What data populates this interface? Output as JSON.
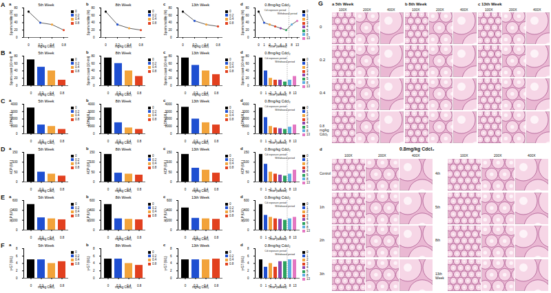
{
  "chart_data": [
    {
      "type": "line",
      "row_label": "A",
      "panel_label": "a",
      "title": "5th Week",
      "x_label": "mg/kg Cdcl₂",
      "y_label": "Sperm motility (%)",
      "categories": [
        "0",
        "0.2",
        "0.4",
        "0.8"
      ],
      "values": [
        70,
        40,
        35,
        20
      ],
      "colors": [
        "#000000",
        "#1f4fd1",
        "#f2a33a",
        "#e2401f"
      ],
      "marker": "circle",
      "ylim": [
        0,
        80
      ],
      "yticks": [
        0,
        20,
        40,
        60,
        80
      ],
      "legend": "right"
    },
    {
      "type": "line",
      "panel_label": "b",
      "title": "8th Week",
      "x_label": "mg/kg Cdcl₂",
      "y_label": "Sperm motility (%)",
      "categories": [
        "0",
        "0.2",
        "0.4",
        "0.8"
      ],
      "values": [
        70,
        35,
        25,
        20
      ],
      "colors": [
        "#000000",
        "#1f4fd1",
        "#f2a33a",
        "#e2401f"
      ],
      "marker": "circle",
      "ylim": [
        0,
        80
      ],
      "yticks": [
        0,
        20,
        40,
        60,
        80
      ],
      "legend": "right"
    },
    {
      "type": "line",
      "panel_label": "c",
      "title": "13th Week",
      "x_label": "mg/kg Cdcl₂",
      "y_label": "Sperm motility (%)",
      "categories": [
        "0",
        "0.2",
        "0.4",
        "0.8"
      ],
      "values": [
        70,
        45,
        35,
        30
      ],
      "colors": [
        "#000000",
        "#1f4fd1",
        "#f2a33a",
        "#e2401f"
      ],
      "marker": "circle",
      "ylim": [
        0,
        80
      ],
      "yticks": [
        0,
        20,
        40,
        60,
        80
      ],
      "legend": "right"
    },
    {
      "type": "line",
      "panel_label": "d",
      "title": "0.8mg/kg Cdcl₂",
      "x_label": "Time (weeks)",
      "y_label": "Sperm motility (%)",
      "categories": [
        "0",
        "1",
        "2",
        "3",
        "4",
        "5",
        "8",
        "13"
      ],
      "values": [
        70,
        40,
        35,
        30,
        25,
        20,
        35,
        45
      ],
      "colors": [
        "#000000",
        "#1f4fd1",
        "#f2a33a",
        "#e2401f",
        "#8e44ad",
        "#2ca25f",
        "#5dade2",
        "#e377c2"
      ],
      "marker": "circle",
      "ylim": [
        0,
        80
      ],
      "yticks": [
        0,
        20,
        40,
        60,
        80
      ],
      "legend": "right",
      "annotations": [
        "Cd exposure period",
        "Withdrawal period"
      ]
    },
    {
      "type": "bar",
      "row_label": "B",
      "panel_label": "a",
      "title": "5th Week",
      "x_label": "mg/kg Cdcl₂",
      "y_label": "Sperm count (10⁶/ml)",
      "categories": [
        "0",
        "0.2",
        "0.4",
        "0.8"
      ],
      "values": [
        70,
        50,
        40,
        15
      ],
      "colors": [
        "#000000",
        "#1f4fd1",
        "#f2a33a",
        "#e2401f"
      ],
      "ylim": [
        0,
        80
      ],
      "yticks": [
        0,
        20,
        40,
        60,
        80
      ],
      "legend": "right"
    },
    {
      "type": "bar",
      "panel_label": "b",
      "title": "8th Week",
      "x_label": "mg/kg Cdcl₂",
      "y_label": "Sperm count (10⁶/ml)",
      "categories": [
        "0",
        "0.2",
        "0.4",
        "0.8"
      ],
      "values": [
        75,
        60,
        40,
        25
      ],
      "colors": [
        "#000000",
        "#1f4fd1",
        "#f2a33a",
        "#e2401f"
      ],
      "ylim": [
        0,
        80
      ],
      "yticks": [
        0,
        20,
        40,
        60,
        80
      ],
      "legend": "right"
    },
    {
      "type": "bar",
      "panel_label": "c",
      "title": "13th Week",
      "x_label": "mg/kg Cdcl₂",
      "y_label": "Sperm count (10⁶/ml)",
      "categories": [
        "0",
        "0.2",
        "0.4",
        "0.8"
      ],
      "values": [
        75,
        55,
        40,
        30
      ],
      "colors": [
        "#000000",
        "#1f4fd1",
        "#f2a33a",
        "#e2401f"
      ],
      "ylim": [
        0,
        80
      ],
      "yticks": [
        0,
        20,
        40,
        60,
        80
      ],
      "legend": "right"
    },
    {
      "type": "bar",
      "panel_label": "d",
      "title": "0.8mg/kg Cdcl₂",
      "x_label": "Time (weeks)",
      "y_label": "Sperm count (10⁶/ml)",
      "categories": [
        "0",
        "1",
        "2",
        "3",
        "4",
        "5",
        "8",
        "13"
      ],
      "values": [
        75,
        40,
        20,
        15,
        15,
        10,
        15,
        25
      ],
      "colors": [
        "#000000",
        "#1f4fd1",
        "#f2a33a",
        "#e2401f",
        "#8e44ad",
        "#2ca25f",
        "#5dade2",
        "#e377c2"
      ],
      "ylim": [
        0,
        80
      ],
      "yticks": [
        0,
        20,
        40,
        60,
        80
      ],
      "legend": "right",
      "annotations": [
        "Cd exposure period",
        "Withdrawal period"
      ]
    },
    {
      "type": "bar",
      "row_label": "C",
      "panel_label": "a",
      "title": "5th Week",
      "x_label": "mg/kg Cdcl₂",
      "y_label": "LDH (U/L)",
      "categories": [
        "0",
        "0.2",
        "0.4",
        "0.8"
      ],
      "values": [
        3500,
        1200,
        1000,
        600
      ],
      "colors": [
        "#000000",
        "#1f4fd1",
        "#f2a33a",
        "#e2401f"
      ],
      "ylim": [
        0,
        4000
      ],
      "yticks": [
        0,
        1000,
        2000,
        3000,
        4000
      ],
      "legend": "right"
    },
    {
      "type": "bar",
      "panel_label": "b",
      "title": "8th Week",
      "x_label": "mg/kg Cdcl₂",
      "y_label": "LDH (U/L)",
      "categories": [
        "0",
        "0.2",
        "0.4",
        "0.8"
      ],
      "values": [
        3500,
        1500,
        800,
        600
      ],
      "colors": [
        "#000000",
        "#1f4fd1",
        "#f2a33a",
        "#e2401f"
      ],
      "ylim": [
        0,
        4000
      ],
      "yticks": [
        0,
        1000,
        2000,
        3000,
        4000
      ],
      "legend": "right"
    },
    {
      "type": "bar",
      "panel_label": "c",
      "title": "13th Week",
      "x_label": "mg/kg Cdcl₂",
      "y_label": "LDH (U/L)",
      "categories": [
        "0",
        "0.2",
        "0.4",
        "0.8"
      ],
      "values": [
        3600,
        2000,
        1500,
        1200
      ],
      "colors": [
        "#000000",
        "#1f4fd1",
        "#f2a33a",
        "#e2401f"
      ],
      "ylim": [
        0,
        4000
      ],
      "yticks": [
        0,
        1000,
        2000,
        3000,
        4000
      ],
      "legend": "right"
    },
    {
      "type": "bar",
      "panel_label": "d",
      "title": "0.8mg/kg Cdcl₂",
      "x_label": "Time (weeks)",
      "y_label": "LDH (U/L)",
      "categories": [
        "0",
        "1",
        "2",
        "3",
        "4",
        "5",
        "8",
        "13"
      ],
      "values": [
        3500,
        2200,
        1000,
        800,
        700,
        600,
        900,
        1200
      ],
      "colors": [
        "#000000",
        "#1f4fd1",
        "#f2a33a",
        "#e2401f",
        "#8e44ad",
        "#2ca25f",
        "#5dade2",
        "#e377c2"
      ],
      "ylim": [
        0,
        4000
      ],
      "yticks": [
        0,
        1000,
        2000,
        3000,
        4000
      ],
      "legend": "right",
      "annotations": [
        "Cd exposure period",
        "Withdrawal period"
      ]
    },
    {
      "type": "bar",
      "row_label": "D",
      "panel_label": "a",
      "title": "5th Week",
      "x_label": "mg/kg Cdcl₂",
      "y_label": "ACP (U/L)",
      "categories": [
        "0",
        "0.2",
        "0.4",
        "0.8"
      ],
      "values": [
        140,
        50,
        40,
        30
      ],
      "colors": [
        "#000000",
        "#1f4fd1",
        "#f2a33a",
        "#e2401f"
      ],
      "ylim": [
        0,
        150
      ],
      "yticks": [
        0,
        50,
        100,
        150
      ],
      "legend": "right"
    },
    {
      "type": "bar",
      "panel_label": "b",
      "title": "8th Week",
      "x_label": "mg/kg Cdcl₂",
      "y_label": "ACP (U/L)",
      "categories": [
        "0",
        "0.2",
        "0.4",
        "0.8"
      ],
      "values": [
        140,
        45,
        40,
        35
      ],
      "colors": [
        "#000000",
        "#1f4fd1",
        "#f2a33a",
        "#e2401f"
      ],
      "ylim": [
        0,
        150
      ],
      "yticks": [
        0,
        50,
        100,
        150
      ],
      "legend": "right"
    },
    {
      "type": "bar",
      "panel_label": "c",
      "title": "13th Week",
      "x_label": "mg/kg Cdcl₂",
      "y_label": "ACP (U/L)",
      "categories": [
        "0",
        "0.2",
        "0.4",
        "0.8"
      ],
      "values": [
        140,
        70,
        60,
        45
      ],
      "colors": [
        "#000000",
        "#1f4fd1",
        "#f2a33a",
        "#e2401f"
      ],
      "ylim": [
        0,
        150
      ],
      "yticks": [
        0,
        50,
        100,
        150
      ],
      "legend": "right"
    },
    {
      "type": "bar",
      "panel_label": "d",
      "title": "0.8mg/kg Cdcl₂",
      "x_label": "Time (weeks)",
      "y_label": "ACP (U/L)",
      "categories": [
        "0",
        "1",
        "2",
        "3",
        "4",
        "5",
        "8",
        "13"
      ],
      "values": [
        140,
        90,
        50,
        40,
        35,
        30,
        40,
        60
      ],
      "colors": [
        "#000000",
        "#1f4fd1",
        "#f2a33a",
        "#e2401f",
        "#8e44ad",
        "#2ca25f",
        "#5dade2",
        "#e377c2"
      ],
      "ylim": [
        0,
        150
      ],
      "yticks": [
        0,
        50,
        100,
        150
      ],
      "legend": "right",
      "annotations": [
        "Cd exposure period",
        "Withdrawal period"
      ]
    },
    {
      "type": "bar",
      "row_label": "E",
      "panel_label": "a",
      "title": "5th Week",
      "x_label": "mg/kg Cdcl₂",
      "y_label": "ALP (U/L)",
      "categories": [
        "0",
        "0.2",
        "0.4",
        "0.8"
      ],
      "values": [
        520,
        250,
        230,
        210
      ],
      "colors": [
        "#000000",
        "#1f4fd1",
        "#f2a33a",
        "#e2401f"
      ],
      "ylim": [
        0,
        600
      ],
      "yticks": [
        0,
        200,
        400,
        600
      ],
      "legend": "right"
    },
    {
      "type": "bar",
      "panel_label": "b",
      "title": "8th Week",
      "x_label": "mg/kg Cdcl₂",
      "y_label": "ALP (U/L)",
      "categories": [
        "0",
        "0.2",
        "0.4",
        "0.8"
      ],
      "values": [
        520,
        230,
        220,
        210
      ],
      "colors": [
        "#000000",
        "#1f4fd1",
        "#f2a33a",
        "#e2401f"
      ],
      "ylim": [
        0,
        600
      ],
      "yticks": [
        0,
        200,
        400,
        600
      ],
      "legend": "right"
    },
    {
      "type": "bar",
      "panel_label": "c",
      "title": "13th Week",
      "x_label": "mg/kg Cdcl₂",
      "y_label": "ALP (U/L)",
      "categories": [
        "0",
        "0.2",
        "0.4",
        "0.8"
      ],
      "values": [
        450,
        240,
        230,
        220
      ],
      "colors": [
        "#000000",
        "#1f4fd1",
        "#f2a33a",
        "#e2401f"
      ],
      "ylim": [
        0,
        600
      ],
      "yticks": [
        0,
        200,
        400,
        600
      ],
      "legend": "right"
    },
    {
      "type": "bar",
      "panel_label": "d",
      "title": "0.8mg/kg Cdcl₂",
      "x_label": "Time (weeks)",
      "y_label": "ALP (U/L)",
      "categories": [
        "0",
        "1",
        "2",
        "3",
        "4",
        "5",
        "8",
        "13"
      ],
      "values": [
        520,
        300,
        260,
        230,
        220,
        200,
        230,
        260
      ],
      "colors": [
        "#000000",
        "#1f4fd1",
        "#f2a33a",
        "#e2401f",
        "#8e44ad",
        "#2ca25f",
        "#5dade2",
        "#e377c2"
      ],
      "ylim": [
        0,
        600
      ],
      "yticks": [
        0,
        200,
        400,
        600
      ],
      "legend": "right",
      "annotations": [
        "Cd exposure period",
        "Withdrawal period"
      ]
    },
    {
      "type": "bar",
      "row_label": "F",
      "panel_label": "a",
      "title": "5th Week",
      "x_label": "mg/kg Cdcl₂",
      "y_label": "γ-GT (U/L)",
      "categories": [
        "0",
        "0.2",
        "0.4",
        "0.8"
      ],
      "values": [
        5,
        5,
        4,
        4.5
      ],
      "colors": [
        "#000000",
        "#1f4fd1",
        "#f2a33a",
        "#e2401f"
      ],
      "ylim": [
        0,
        8
      ],
      "yticks": [
        0,
        2,
        4,
        6,
        8
      ],
      "legend": "right"
    },
    {
      "type": "bar",
      "panel_label": "b",
      "title": "8th Week",
      "x_label": "mg/kg Cdcl₂",
      "y_label": "γ-GT (U/L)",
      "categories": [
        "0",
        "0.2",
        "0.4",
        "0.8"
      ],
      "values": [
        5.2,
        5.2,
        4,
        3.5
      ],
      "colors": [
        "#000000",
        "#1f4fd1",
        "#f2a33a",
        "#e2401f"
      ],
      "ylim": [
        0,
        8
      ],
      "yticks": [
        0,
        2,
        4,
        6,
        8
      ],
      "legend": "right"
    },
    {
      "type": "bar",
      "panel_label": "c",
      "title": "13th Week",
      "x_label": "mg/kg Cdcl₂",
      "y_label": "γ-GT (U/L)",
      "categories": [
        "0",
        "0.2",
        "0.4",
        "0.8"
      ],
      "values": [
        5,
        5,
        5,
        5.2
      ],
      "colors": [
        "#000000",
        "#1f4fd1",
        "#f2a33a",
        "#e2401f"
      ],
      "ylim": [
        0,
        8
      ],
      "yticks": [
        0,
        2,
        4,
        6,
        8
      ],
      "legend": "right"
    },
    {
      "type": "bar",
      "panel_label": "d",
      "title": "0.8mg/kg Cdcl₂",
      "x_label": "Time (weeks)",
      "y_label": "γ-GT (U/L)",
      "categories": [
        "0",
        "1",
        "2",
        "3",
        "4",
        "5",
        "8",
        "13"
      ],
      "values": [
        5,
        3,
        4,
        3,
        4.5,
        4.5,
        5,
        5
      ],
      "colors": [
        "#000000",
        "#1f4fd1",
        "#f2a33a",
        "#e2401f",
        "#8e44ad",
        "#2ca25f",
        "#5dade2",
        "#e377c2"
      ],
      "ylim": [
        0,
        8
      ],
      "yticks": [
        0,
        2,
        4,
        6,
        8
      ],
      "legend": "right",
      "annotations": [
        "Cd exposure period",
        "Withdrawal period"
      ]
    }
  ],
  "histology": {
    "label": "G",
    "top": {
      "panels": [
        {
          "label": "a",
          "title": "5th Week"
        },
        {
          "label": "b",
          "title": "8th Week"
        },
        {
          "label": "c",
          "title": "13th Week"
        }
      ],
      "magnifications": [
        "100X",
        "200X",
        "400X"
      ],
      "rows": [
        "0",
        "0.2",
        "0.4",
        "0.8"
      ],
      "row_unit": "mg/kg Cdcl₂"
    },
    "bottom": {
      "label": "d",
      "title": "0.8mg/kg Cdcl₂",
      "magnifications": [
        "100X",
        "200X",
        "400X"
      ],
      "left_rows": [
        "Control",
        "1th",
        "2th",
        "3th"
      ],
      "right_rows": [
        "4th",
        "5th",
        "8th",
        "13th Week"
      ]
    }
  }
}
